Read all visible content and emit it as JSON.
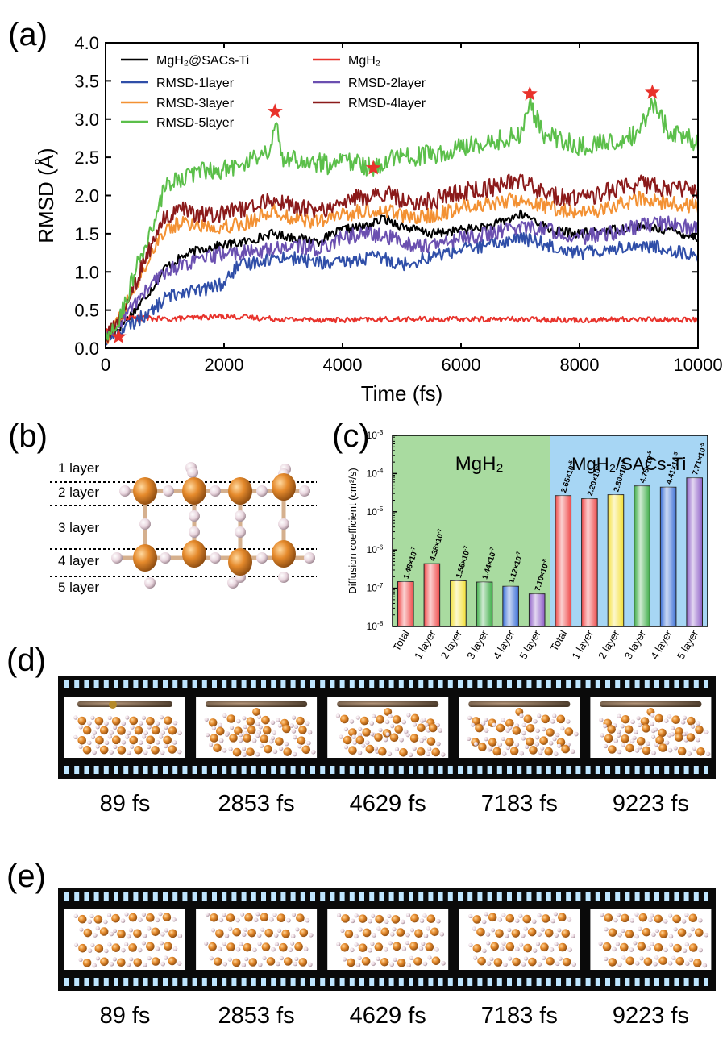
{
  "panels": {
    "a": "(a)",
    "b": "(b)",
    "c": "(c)",
    "d": "(d)",
    "e": "(e)"
  },
  "chart_data": [
    {
      "type": "line",
      "panel": "a",
      "xlabel": "Time (fs)",
      "ylabel": "RMSD (Å)",
      "xlim": [
        0,
        10000
      ],
      "ylim": [
        0,
        4.0
      ],
      "xticks": [
        "0",
        "2000",
        "4000",
        "6000",
        "8000",
        "10000"
      ],
      "yticks": [
        "0.0",
        "0.5",
        "1.0",
        "1.5",
        "2.0",
        "2.5",
        "3.0",
        "3.5",
        "4.0"
      ],
      "legend": {
        "placement": "top-left"
      },
      "series": [
        {
          "name": "MgH₂@SACs-Ti",
          "color": "#000000",
          "x": [
            0,
            200,
            500,
            800,
            1000,
            1300,
            1600,
            2000,
            2400,
            2800,
            3200,
            3600,
            4000,
            4400,
            4700,
            5000,
            5500,
            6000,
            6500,
            7000,
            7200,
            7500,
            8000,
            8500,
            9000,
            9500,
            10000
          ],
          "y": [
            0.1,
            0.25,
            0.5,
            0.8,
            1.05,
            1.2,
            1.3,
            1.35,
            1.4,
            1.5,
            1.45,
            1.4,
            1.55,
            1.6,
            1.7,
            1.6,
            1.5,
            1.55,
            1.6,
            1.75,
            1.7,
            1.55,
            1.5,
            1.55,
            1.6,
            1.55,
            1.45
          ]
        },
        {
          "name": "MgH₂",
          "color": "#e8322b",
          "x": [
            0,
            200,
            500,
            1000,
            2000,
            3000,
            4000,
            5000,
            6000,
            7000,
            8000,
            9000,
            10000
          ],
          "y": [
            0.2,
            0.38,
            0.4,
            0.38,
            0.42,
            0.38,
            0.37,
            0.38,
            0.38,
            0.38,
            0.37,
            0.38,
            0.37
          ]
        },
        {
          "name": "RMSD-1layer",
          "color": "#2f4ea8",
          "x": [
            0,
            200,
            500,
            800,
            1000,
            1300,
            1600,
            2000,
            2200,
            2600,
            3000,
            3400,
            3800,
            4200,
            4600,
            5000,
            5500,
            6000,
            6500,
            7000,
            7500,
            8000,
            8500,
            9000,
            9500,
            10000
          ],
          "y": [
            0.1,
            0.2,
            0.35,
            0.5,
            0.65,
            0.75,
            0.75,
            0.85,
            1.05,
            1.15,
            1.2,
            1.15,
            1.1,
            1.15,
            1.2,
            1.1,
            1.2,
            1.3,
            1.35,
            1.45,
            1.35,
            1.25,
            1.3,
            1.35,
            1.3,
            1.2
          ]
        },
        {
          "name": "RMSD-2layer",
          "color": "#6a4fb0",
          "x": [
            0,
            200,
            500,
            800,
            1000,
            1300,
            1600,
            2000,
            2400,
            2800,
            3200,
            3600,
            4000,
            4400,
            4800,
            5200,
            5600,
            6000,
            6500,
            7000,
            7500,
            8000,
            8500,
            9000,
            9500,
            10000
          ],
          "y": [
            0.1,
            0.3,
            0.6,
            0.85,
            1.0,
            1.1,
            1.15,
            1.25,
            1.25,
            1.3,
            1.35,
            1.3,
            1.45,
            1.5,
            1.45,
            1.35,
            1.35,
            1.45,
            1.5,
            1.6,
            1.55,
            1.45,
            1.5,
            1.6,
            1.65,
            1.55
          ]
        },
        {
          "name": "RMSD-3layer",
          "color": "#f39133",
          "x": [
            0,
            200,
            500,
            800,
            1000,
            1300,
            1600,
            2000,
            2400,
            2800,
            3200,
            3600,
            4000,
            4400,
            4800,
            5200,
            5600,
            6000,
            6500,
            7000,
            7500,
            8000,
            8500,
            9000,
            9500,
            10000
          ],
          "y": [
            0.1,
            0.35,
            0.8,
            1.3,
            1.55,
            1.65,
            1.6,
            1.6,
            1.65,
            1.8,
            1.7,
            1.65,
            1.75,
            1.8,
            1.8,
            1.7,
            1.75,
            1.85,
            1.9,
            1.95,
            1.85,
            1.75,
            1.85,
            1.95,
            1.9,
            1.85
          ]
        },
        {
          "name": "RMSD-4layer",
          "color": "#8b1a1a",
          "x": [
            0,
            200,
            500,
            800,
            1000,
            1300,
            1600,
            2000,
            2400,
            2800,
            3200,
            3600,
            4000,
            4400,
            4800,
            5200,
            5600,
            6000,
            6500,
            7000,
            7500,
            8000,
            8500,
            9000,
            9500,
            10000
          ],
          "y": [
            0.1,
            0.35,
            0.85,
            1.4,
            1.7,
            1.8,
            1.75,
            1.75,
            1.85,
            1.95,
            1.85,
            1.8,
            1.9,
            2.0,
            2.0,
            1.9,
            1.95,
            2.05,
            2.1,
            2.2,
            2.0,
            1.95,
            2.05,
            2.15,
            2.1,
            2.05
          ]
        },
        {
          "name": "RMSD-5layer",
          "color": "#5bbf4a",
          "x": [
            0,
            200,
            500,
            800,
            1000,
            1300,
            1600,
            2000,
            2400,
            2800,
            2860,
            3000,
            3400,
            3800,
            4200,
            4500,
            4800,
            5200,
            5600,
            6000,
            6500,
            7000,
            7150,
            7400,
            8000,
            8500,
            9000,
            9220,
            9500,
            10000
          ],
          "y": [
            0.1,
            0.3,
            1.0,
            1.6,
            2.1,
            2.25,
            2.3,
            2.35,
            2.45,
            2.6,
            3.0,
            2.5,
            2.45,
            2.4,
            2.45,
            2.35,
            2.5,
            2.5,
            2.55,
            2.65,
            2.7,
            2.8,
            3.2,
            2.8,
            2.65,
            2.7,
            2.8,
            3.2,
            2.85,
            2.7
          ]
        }
      ],
      "markers": {
        "symbol": "star",
        "color": "#e8322b",
        "x": [
          220,
          2860,
          4520,
          7160,
          9230
        ],
        "y": [
          0.15,
          3.1,
          2.36,
          3.33,
          3.35
        ]
      }
    },
    {
      "type": "bar",
      "panel": "c",
      "ylabel": "Diffusion coefficient (cm²/s)",
      "yscale": "log",
      "ylim": [
        1e-08,
        0.001
      ],
      "yticks": [
        {
          "base": "10",
          "exp": "-8"
        },
        {
          "base": "10",
          "exp": "-7"
        },
        {
          "base": "10",
          "exp": "-6"
        },
        {
          "base": "10",
          "exp": "-5"
        },
        {
          "base": "10",
          "exp": "-4"
        },
        {
          "base": "10",
          "exp": "-3"
        }
      ],
      "groups": [
        {
          "name": "MgH₂",
          "background": "#a9dba0"
        },
        {
          "name": "MgH₂/SACs-Ti",
          "background": "#a7d6f4"
        }
      ],
      "categories": [
        "Total",
        "1 layer",
        "2 layer",
        "3 layer",
        "4 layer",
        "5 layer",
        "Total",
        "1 layer",
        "2 layer",
        "3 layer",
        "4 layer",
        "5 layer"
      ],
      "values": [
        1.48e-07,
        4.38e-07,
        1.56e-07,
        1.44e-07,
        1.12e-07,
        7.1e-08,
        2.65e-05,
        2.2e-05,
        2.8e-05,
        4.75e-05,
        4.41e-05,
        7.71e-05
      ],
      "labels": [
        {
          "m": "1.48×10",
          "e": "-7"
        },
        {
          "m": "4.38×10",
          "e": "-7"
        },
        {
          "m": "1.56×10",
          "e": "-7"
        },
        {
          "m": "1.44×10",
          "e": "-7"
        },
        {
          "m": "1.12×10",
          "e": "-7"
        },
        {
          "m": "7.10×10",
          "e": "-8"
        },
        {
          "m": "2.65×10",
          "e": "-5"
        },
        {
          "m": "2.20×10",
          "e": "-5"
        },
        {
          "m": "2.80×10",
          "e": "-5"
        },
        {
          "m": "4.75×10",
          "e": "-5"
        },
        {
          "m": "4.41×10",
          "e": "-5"
        },
        {
          "m": "7.71×10",
          "e": "-5"
        }
      ],
      "colors": [
        "#ef4b4b",
        "#ef4b4b",
        "#f4e13a",
        "#3fae49",
        "#3b6fd6",
        "#8e5fc7",
        "#ef4b4b",
        "#ef4b4b",
        "#f4e13a",
        "#3fae49",
        "#3b6fd6",
        "#8e5fc7"
      ]
    }
  ],
  "structure_b": {
    "layers": [
      "1 layer",
      "2 layer",
      "3 layer",
      "4 layer",
      "5 layer"
    ],
    "atom_colors": {
      "mg": "#e0862a",
      "h": "#e7d3dc"
    }
  },
  "film_d": {
    "times": [
      "89 fs",
      "2853 fs",
      "4629 fs",
      "7183 fs",
      "9223 fs"
    ]
  },
  "film_e": {
    "times": [
      "89 fs",
      "2853 fs",
      "4629 fs",
      "7183 fs",
      "9223 fs"
    ]
  }
}
